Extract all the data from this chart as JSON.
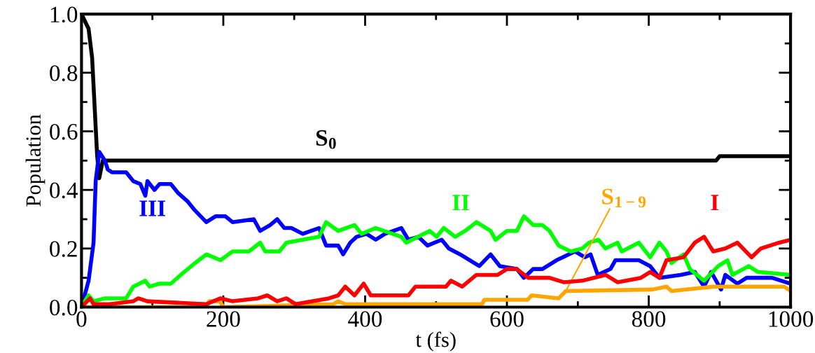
{
  "chart_data": {
    "type": "line",
    "xlabel": "t (fs)",
    "ylabel": "Population",
    "xlim": [
      0,
      1000
    ],
    "xticks": [
      0,
      200,
      400,
      600,
      800,
      1000
    ],
    "ylim": [
      0,
      1.0
    ],
    "yticks": [
      {
        "value": 0,
        "label": "0.0"
      },
      0.2,
      0.4,
      0.6,
      0.8,
      {
        "value": 1.0,
        "label": "1.0"
      }
    ],
    "grid": false,
    "legend": false,
    "marker": "none",
    "line_style": "solid",
    "series": [
      {
        "name": "S$_{0}$",
        "color": "#000000",
        "x": [
          0,
          10,
          15,
          22,
          25,
          30,
          895,
          900,
          1000
        ],
        "values": [
          1.0,
          0.95,
          0.85,
          0.52,
          0.44,
          0.5,
          0.5,
          0.515,
          0.515
        ]
      },
      {
        "name": "III",
        "color": "#0000ff",
        "x": [
          0,
          10,
          17,
          20,
          25,
          33,
          37,
          43,
          63,
          73,
          83,
          90,
          93,
          103,
          110,
          126,
          136,
          150,
          160,
          176,
          189,
          203,
          213,
          243,
          252,
          266,
          276,
          286,
          296,
          312,
          335,
          345,
          362,
          369,
          379,
          388,
          402,
          415,
          428,
          451,
          461,
          475,
          488,
          508,
          518,
          534,
          561,
          577,
          590,
          614,
          624,
          637,
          650,
          670,
          696,
          710,
          718,
          728,
          746,
          753,
          786,
          802,
          815,
          845,
          865,
          878,
          888,
          902,
          908,
          925,
          938,
          974,
          1000
        ],
        "values": [
          0.0,
          0.09,
          0.22,
          0.43,
          0.53,
          0.5,
          0.47,
          0.46,
          0.46,
          0.43,
          0.42,
          0.38,
          0.43,
          0.4,
          0.42,
          0.42,
          0.39,
          0.36,
          0.33,
          0.29,
          0.31,
          0.31,
          0.29,
          0.3,
          0.26,
          0.28,
          0.3,
          0.27,
          0.27,
          0.25,
          0.27,
          0.21,
          0.21,
          0.18,
          0.22,
          0.24,
          0.25,
          0.23,
          0.25,
          0.27,
          0.23,
          0.24,
          0.21,
          0.23,
          0.2,
          0.18,
          0.14,
          0.18,
          0.14,
          0.13,
          0.1,
          0.13,
          0.13,
          0.16,
          0.19,
          0.17,
          0.18,
          0.11,
          0.13,
          0.16,
          0.16,
          0.14,
          0.1,
          0.11,
          0.12,
          0.07,
          0.12,
          0.06,
          0.11,
          0.08,
          0.1,
          0.1,
          0.08
        ]
      },
      {
        "name": "II",
        "color": "#00ff00",
        "x": [
          0,
          2,
          10,
          17,
          33,
          63,
          73,
          90,
          96,
          110,
          126,
          140,
          160,
          176,
          196,
          213,
          236,
          252,
          259,
          279,
          289,
          312,
          335,
          345,
          362,
          385,
          395,
          415,
          451,
          458,
          491,
          501,
          511,
          527,
          541,
          557,
          577,
          584,
          600,
          614,
          624,
          637,
          650,
          660,
          673,
          690,
          706,
          716,
          729,
          739,
          756,
          762,
          786,
          802,
          815,
          825,
          832,
          849,
          858,
          878,
          898,
          911,
          918,
          941,
          954,
          1000
        ],
        "values": [
          0.0,
          0.01,
          0.04,
          0.02,
          0.03,
          0.03,
          0.07,
          0.09,
          0.07,
          0.08,
          0.08,
          0.11,
          0.15,
          0.18,
          0.16,
          0.19,
          0.19,
          0.22,
          0.19,
          0.19,
          0.22,
          0.23,
          0.24,
          0.29,
          0.26,
          0.28,
          0.25,
          0.27,
          0.24,
          0.22,
          0.26,
          0.24,
          0.27,
          0.24,
          0.26,
          0.29,
          0.26,
          0.23,
          0.26,
          0.26,
          0.31,
          0.28,
          0.28,
          0.26,
          0.21,
          0.19,
          0.2,
          0.22,
          0.23,
          0.2,
          0.22,
          0.19,
          0.22,
          0.17,
          0.22,
          0.19,
          0.15,
          0.18,
          0.13,
          0.09,
          0.14,
          0.16,
          0.11,
          0.14,
          0.12,
          0.11
        ]
      },
      {
        "name": "S$_{1−9}$",
        "color": "#ffa500",
        "x": [
          0,
          176,
          180,
          195,
          200,
          355,
          362,
          372,
          565,
          568,
          629,
          635,
          673,
          683,
          805,
          825,
          832,
          892,
          991,
          1000
        ],
        "values": [
          0.0,
          0.0,
          0.02,
          0.02,
          0.0,
          0.01,
          0.02,
          0.01,
          0.01,
          0.025,
          0.025,
          0.04,
          0.03,
          0.055,
          0.06,
          0.07,
          0.055,
          0.07,
          0.07,
          0.055
        ]
      },
      {
        "name": "I",
        "color": "#ff0000",
        "x": [
          0,
          12,
          17,
          40,
          73,
          80,
          93,
          176,
          196,
          213,
          249,
          262,
          276,
          289,
          302,
          349,
          362,
          372,
          385,
          398,
          408,
          461,
          471,
          491,
          514,
          521,
          537,
          557,
          587,
          600,
          614,
          630,
          660,
          680,
          706,
          739,
          756,
          789,
          802,
          815,
          825,
          849,
          865,
          878,
          891,
          908,
          925,
          945,
          958,
          984,
          1000
        ],
        "values": [
          0.0,
          0.03,
          0.01,
          0.01,
          0.02,
          0.03,
          0.02,
          0.01,
          0.03,
          0.02,
          0.03,
          0.04,
          0.02,
          0.03,
          0.01,
          0.03,
          0.04,
          0.07,
          0.04,
          0.08,
          0.04,
          0.04,
          0.07,
          0.07,
          0.07,
          0.09,
          0.07,
          0.11,
          0.11,
          0.13,
          0.13,
          0.1,
          0.1,
          0.085,
          0.09,
          0.11,
          0.085,
          0.1,
          0.12,
          0.1,
          0.16,
          0.17,
          0.22,
          0.24,
          0.19,
          0.2,
          0.22,
          0.17,
          0.2,
          0.22,
          0.23
        ]
      }
    ]
  }
}
